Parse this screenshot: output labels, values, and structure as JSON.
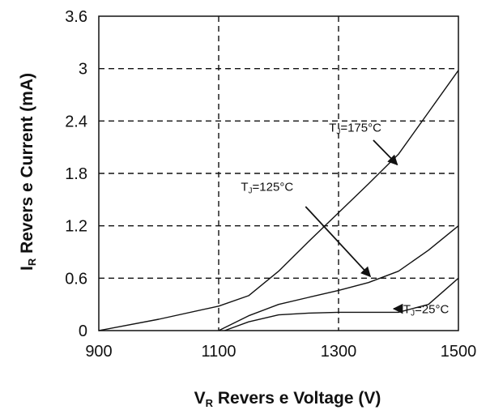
{
  "chart_data": {
    "type": "line",
    "xlabel": {
      "symbol": "V",
      "sub": "R",
      "text": " Revers e Voltage (V)"
    },
    "ylabel": {
      "symbol": "I",
      "sub": "R",
      "text": " Revers e Current (mA)"
    },
    "xlim": [
      900,
      1500
    ],
    "ylim": [
      0,
      3.6
    ],
    "x_ticks": [
      900,
      1100,
      1300,
      1500
    ],
    "y_ticks": [
      0,
      0.6,
      1.2,
      1.8,
      2.4,
      3,
      3.6
    ],
    "x_tick_labels": [
      "900",
      "1100",
      "1300",
      "1500"
    ],
    "y_tick_labels": [
      "0",
      "0.6",
      "1.2",
      "1.8",
      "2.4",
      "3",
      "3.6"
    ],
    "grid": "dashed",
    "series": [
      {
        "name": "TJ=175°C",
        "label": {
          "T": "T",
          "sub": "J",
          "rest": "=175°C"
        },
        "x": [
          900,
          1000,
          1100,
          1150,
          1200,
          1250,
          1300,
          1350,
          1400,
          1450,
          1500
        ],
        "y": [
          0,
          0.13,
          0.28,
          0.4,
          0.68,
          1.02,
          1.35,
          1.68,
          2.02,
          2.5,
          2.98
        ]
      },
      {
        "name": "TJ=125°C",
        "label": {
          "T": "T",
          "sub": "J",
          "rest": "=125°C"
        },
        "x": [
          1100,
          1150,
          1200,
          1250,
          1300,
          1350,
          1400,
          1450,
          1500
        ],
        "y": [
          0,
          0.17,
          0.3,
          0.38,
          0.46,
          0.55,
          0.68,
          0.92,
          1.2
        ]
      },
      {
        "name": "TJ=25°C",
        "label": {
          "T": "T",
          "sub": "J",
          "rest": "=25°C"
        },
        "x": [
          1110,
          1150,
          1200,
          1250,
          1300,
          1350,
          1400,
          1450,
          1500
        ],
        "y": [
          0,
          0.1,
          0.18,
          0.2,
          0.21,
          0.21,
          0.21,
          0.3,
          0.6
        ]
      }
    ],
    "annotations": [
      {
        "series": 0,
        "text_at": [
          1284,
          2.28
        ],
        "arrow_from": [
          1358,
          2.18
        ],
        "arrow_to": [
          1398,
          1.9
        ]
      },
      {
        "series": 1,
        "text_at": [
          1137,
          1.6
        ],
        "arrow_from": [
          1245,
          1.42
        ],
        "arrow_to": [
          1353,
          0.62
        ]
      },
      {
        "series": 2,
        "text_at": [
          1408,
          0.2
        ],
        "arrow_from": [
          1405,
          0.25
        ],
        "arrow_to": [
          1392,
          0.25
        ]
      }
    ]
  }
}
